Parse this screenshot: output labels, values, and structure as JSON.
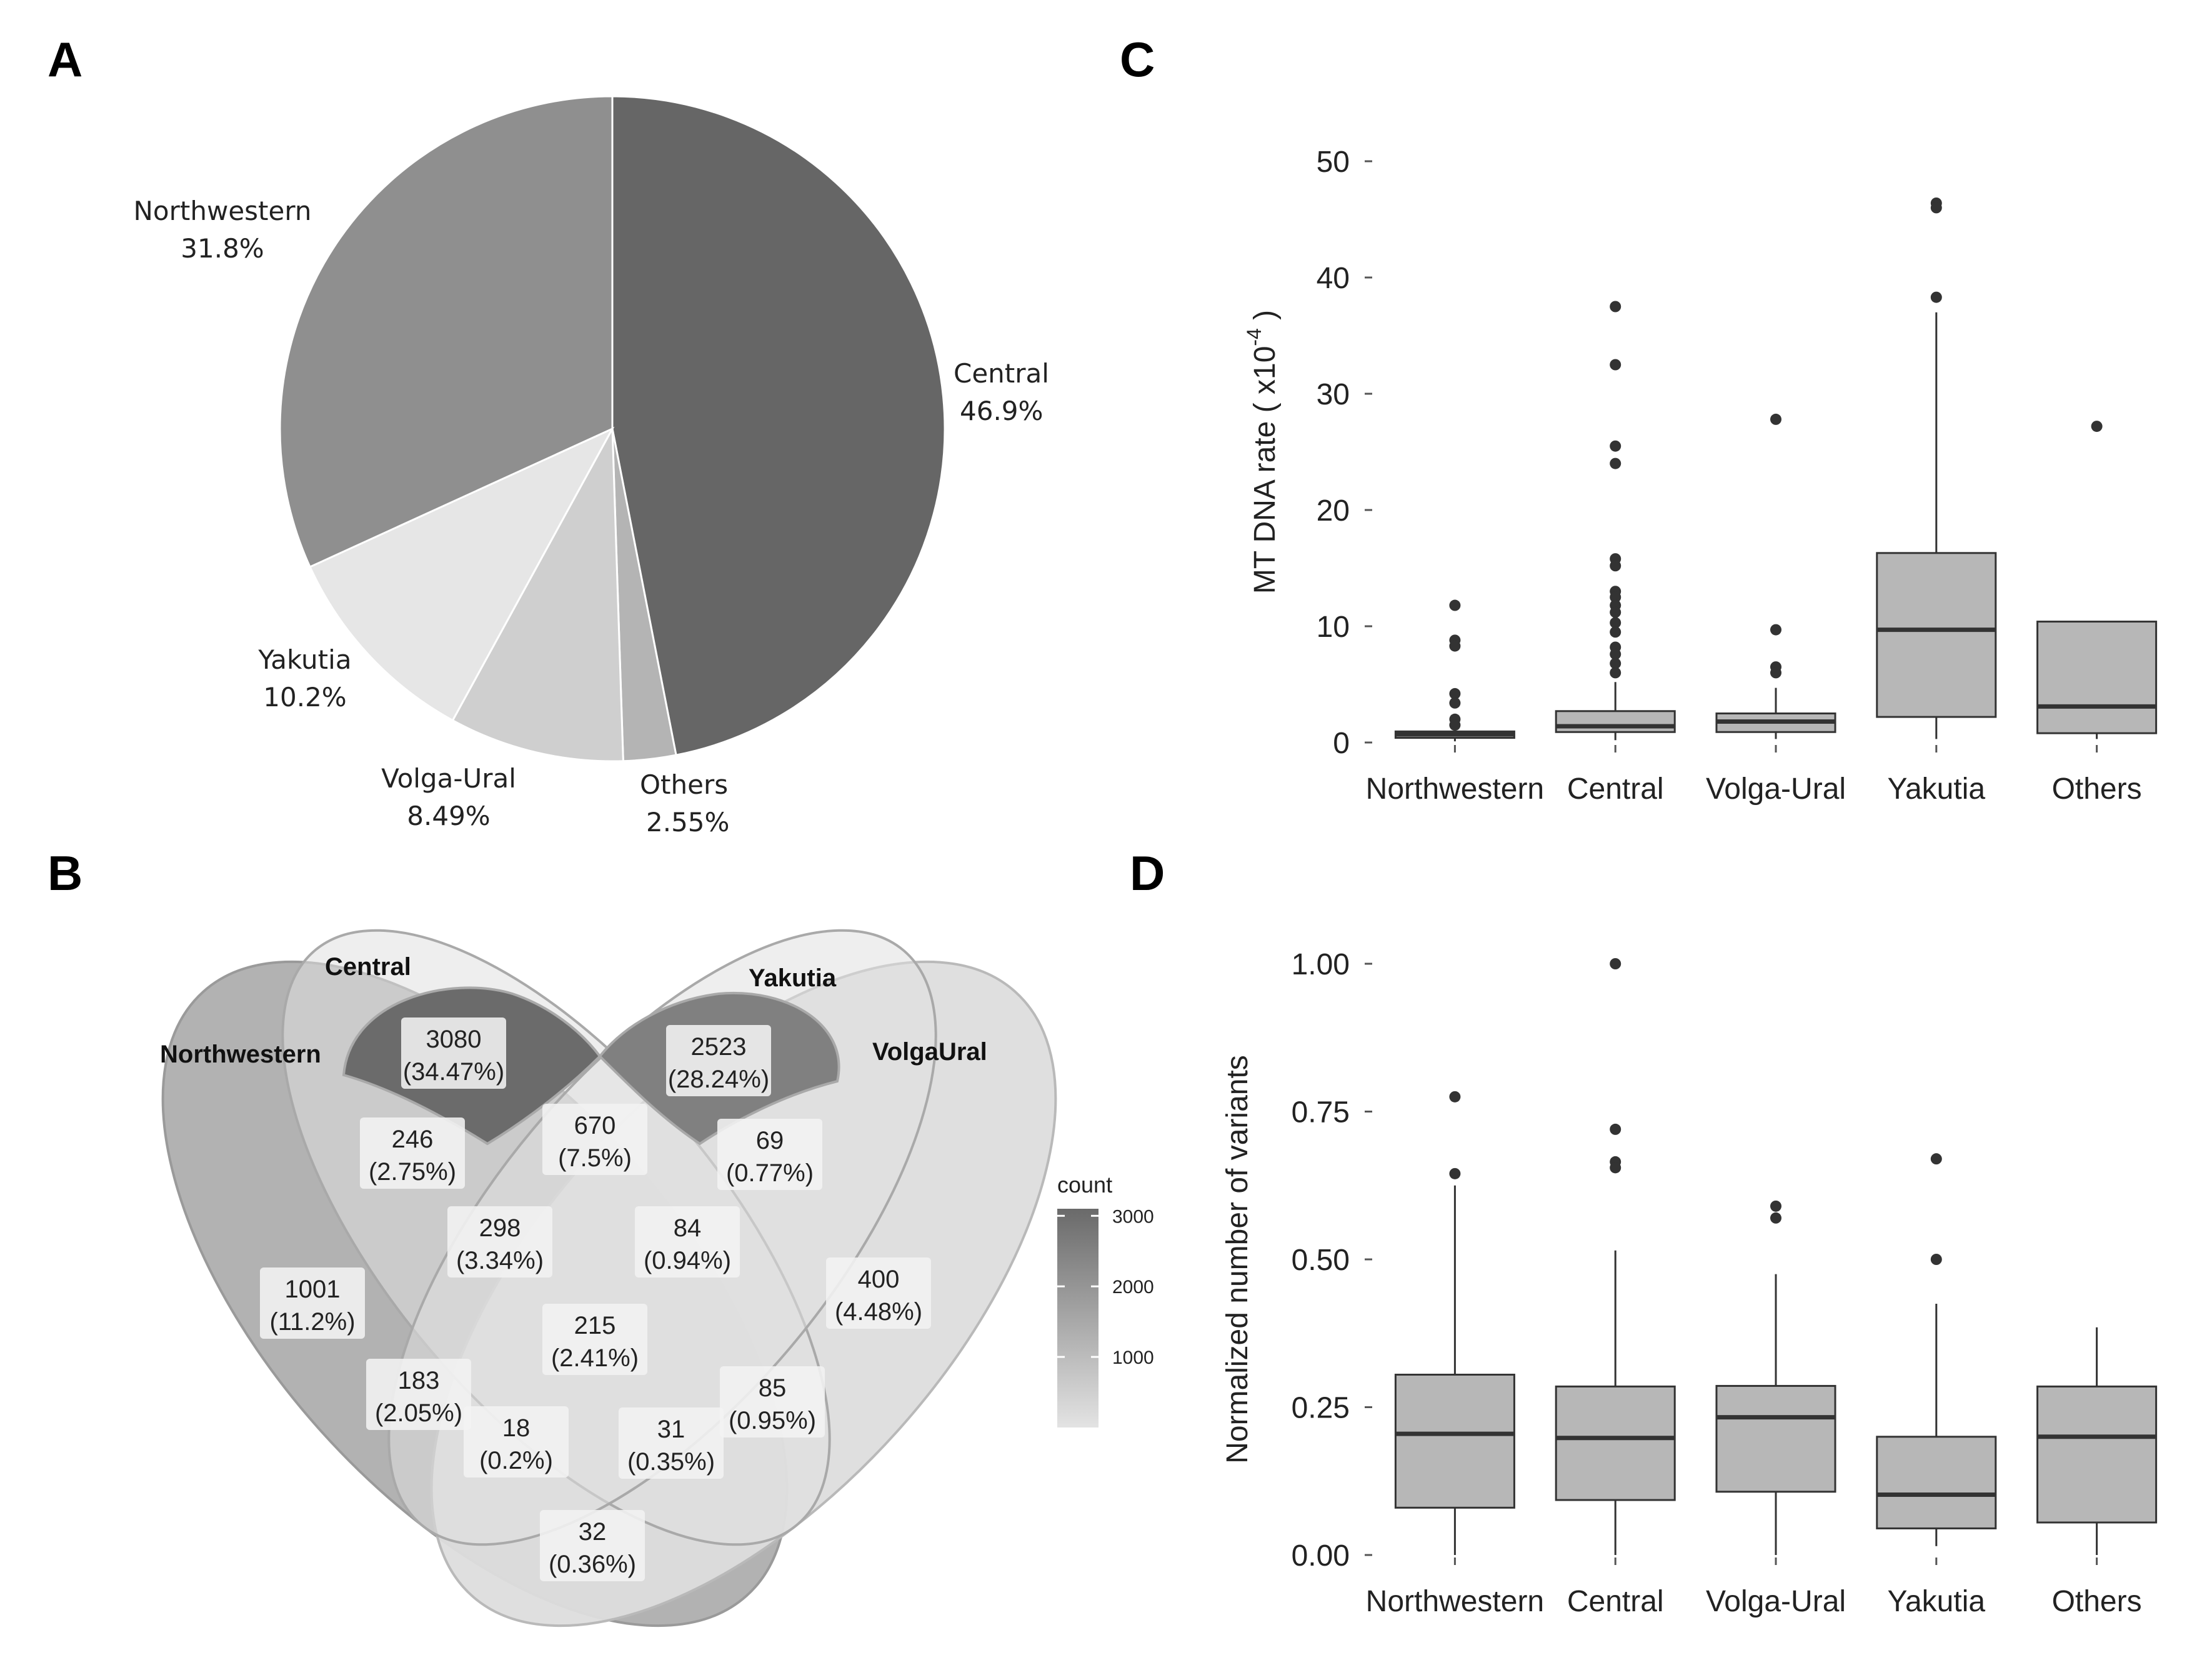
{
  "panels": {
    "a": "A",
    "b": "B",
    "c": "C",
    "d": "D"
  },
  "chart_data": [
    {
      "id": "A",
      "type": "pie",
      "slices": [
        {
          "label": "Central",
          "pct": "46.9%",
          "value": 46.9,
          "color": "#666666"
        },
        {
          "label": "Others",
          "pct": "2.55%",
          "value": 2.55,
          "color": "#b4b4b4"
        },
        {
          "label": "Volga-Ural",
          "pct": "8.49%",
          "value": 8.49,
          "color": "#cfcfcf"
        },
        {
          "label": "Yakutia",
          "pct": "10.2%",
          "value": 10.2,
          "color": "#e6e6e6"
        },
        {
          "label": "Northwestern",
          "pct": "31.8%",
          "value": 31.8,
          "color": "#8f8f8f"
        }
      ]
    },
    {
      "id": "B",
      "type": "venn",
      "sets": [
        "Northwestern",
        "Central",
        "Yakutia",
        "VolgaUral"
      ],
      "regions": [
        {
          "sets": [
            "Central"
          ],
          "count": 3080,
          "pct": "(34.47%)"
        },
        {
          "sets": [
            "Yakutia"
          ],
          "count": 2523,
          "pct": "(28.24%)"
        },
        {
          "sets": [
            "Central",
            "Yakutia"
          ],
          "count": 670,
          "pct": "(7.5%)"
        },
        {
          "sets": [
            "Northwestern",
            "Central"
          ],
          "count": 246,
          "pct": "(2.75%)"
        },
        {
          "sets": [
            "Yakutia",
            "VolgaUral"
          ],
          "count": 69,
          "pct": "(0.77%)"
        },
        {
          "sets": [
            "Northwestern",
            "Central",
            "Yakutia"
          ],
          "count": 298,
          "pct": "(3.34%)"
        },
        {
          "sets": [
            "Central",
            "Yakutia",
            "VolgaUral"
          ],
          "count": 84,
          "pct": "(0.94%)"
        },
        {
          "sets": [
            "Northwestern"
          ],
          "count": 1001,
          "pct": "(11.2%)"
        },
        {
          "sets": [
            "VolgaUral"
          ],
          "count": 400,
          "pct": "(4.48%)"
        },
        {
          "sets": [
            "Northwestern",
            "Central",
            "Yakutia",
            "VolgaUral"
          ],
          "count": 215,
          "pct": "(2.41%)"
        },
        {
          "sets": [
            "Northwestern",
            "Yakutia"
          ],
          "count": 183,
          "pct": "(2.05%)"
        },
        {
          "sets": [
            "Central",
            "VolgaUral"
          ],
          "count": 85,
          "pct": "(0.95%)"
        },
        {
          "sets": [
            "Northwestern",
            "Yakutia",
            "VolgaUral"
          ],
          "count": 18,
          "pct": "(0.2%)"
        },
        {
          "sets": [
            "Northwestern",
            "Central",
            "VolgaUral"
          ],
          "count": 31,
          "pct": "(0.35%)"
        },
        {
          "sets": [
            "Northwestern",
            "VolgaUral"
          ],
          "count": 32,
          "pct": "(0.36%)"
        }
      ],
      "legend": {
        "title": "count",
        "ticks": [
          3000,
          2000,
          1000
        ],
        "range": [
          0,
          3100
        ],
        "low_color": "#e3e3e3",
        "high_color": "#6a6a6a"
      }
    },
    {
      "id": "C",
      "type": "boxplot",
      "ylabel": "MT DNA rate ( x10",
      "ylabel_sup": "-4",
      "ylabel_end": " )",
      "ylim": [
        0,
        50
      ],
      "yticks": [
        0,
        10,
        20,
        30,
        40,
        50
      ],
      "box_color": "#b7b7b7",
      "categories": [
        "Northwestern",
        "Central",
        "Volga-Ural",
        "Yakutia",
        "Others"
      ],
      "boxes": [
        {
          "q1": 0.4,
          "median": 0.7,
          "q3": 0.95,
          "wlo": 0.1,
          "whi": 1.3,
          "outliers": [
            11.8,
            8.8,
            8.3,
            4.2,
            3.4,
            2.0,
            1.5
          ]
        },
        {
          "q1": 0.9,
          "median": 1.4,
          "q3": 2.7,
          "wlo": 0.2,
          "whi": 5.2,
          "outliers": [
            37.5,
            32.5,
            25.5,
            24.0,
            15.8,
            15.2,
            13.0,
            12.5,
            11.8,
            11.2,
            10.3,
            9.5,
            8.2,
            7.6,
            6.8,
            6.0
          ]
        },
        {
          "q1": 0.9,
          "median": 1.8,
          "q3": 2.5,
          "wlo": 0.3,
          "whi": 4.7,
          "outliers": [
            27.8,
            9.7,
            6.5,
            6.0
          ]
        },
        {
          "q1": 2.2,
          "median": 9.7,
          "q3": 16.3,
          "wlo": 0.3,
          "whi": 37.0,
          "outliers": [
            46.4,
            46.0,
            38.3
          ]
        },
        {
          "q1": 0.8,
          "median": 3.1,
          "q3": 10.4,
          "wlo": 0.3,
          "whi": 10.4,
          "outliers": [
            27.2
          ]
        }
      ]
    },
    {
      "id": "D",
      "type": "boxplot",
      "ylabel": "Normalized number of variants",
      "ylim": [
        0,
        1
      ],
      "yticks": [
        0,
        0.25,
        0.5,
        0.75,
        1
      ],
      "ytick_labels": [
        "0.00",
        "0.25",
        "0.50",
        "0.75",
        "1.00"
      ],
      "box_color": "#b7b7b7",
      "categories": [
        "Northwestern",
        "Central",
        "Volga-Ural",
        "Yakutia",
        "Others"
      ],
      "boxes": [
        {
          "q1": 0.08,
          "median": 0.205,
          "q3": 0.305,
          "wlo": 0.0,
          "whi": 0.625,
          "outliers": [
            0.775,
            0.645
          ]
        },
        {
          "q1": 0.093,
          "median": 0.198,
          "q3": 0.285,
          "wlo": 0.0,
          "whi": 0.515,
          "outliers": [
            1.0,
            0.72,
            0.665,
            0.655
          ]
        },
        {
          "q1": 0.107,
          "median": 0.233,
          "q3": 0.286,
          "wlo": 0.0,
          "whi": 0.475,
          "outliers": [
            0.59,
            0.57
          ]
        },
        {
          "q1": 0.045,
          "median": 0.102,
          "q3": 0.2,
          "wlo": 0.015,
          "whi": 0.425,
          "outliers": [
            0.67,
            0.5
          ]
        },
        {
          "q1": 0.055,
          "median": 0.2,
          "q3": 0.285,
          "wlo": 0.0,
          "whi": 0.385,
          "outliers": []
        }
      ]
    }
  ]
}
